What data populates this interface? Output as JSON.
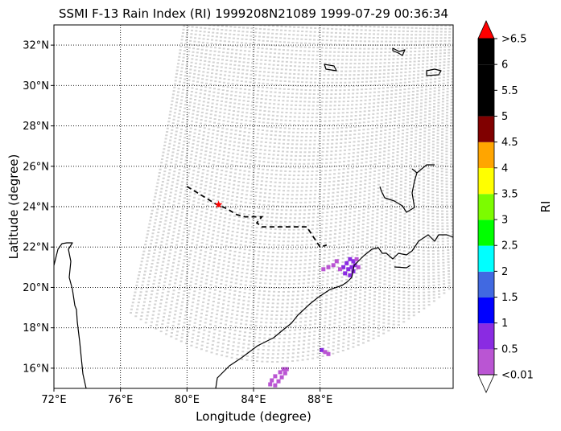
{
  "title": "SSMI F-13 Rain Index (RI) 1999208N21089 1999-07-29 00:36:34",
  "chart_data": {
    "type": "map",
    "title": "SSMI F-13 Rain Index (RI) 1999208N21089 1999-07-29 00:36:34",
    "xlabel": "Longitude (degree)",
    "ylabel": "Latitude (degree)",
    "xlim": [
      72,
      96
    ],
    "ylim": [
      15,
      33
    ],
    "x_ticks": [
      72,
      76,
      80,
      84,
      88
    ],
    "x_tick_labels": [
      "72°E",
      "76°E",
      "80°E",
      "84°E",
      "88°E"
    ],
    "y_ticks": [
      16,
      18,
      20,
      22,
      24,
      26,
      28,
      30,
      32
    ],
    "y_tick_labels": [
      "16°N",
      "18°N",
      "20°N",
      "22°N",
      "24°N",
      "26°N",
      "28°N",
      "30°N",
      "32°N"
    ],
    "grid": "dotted",
    "swath_color": "#d3d3d3",
    "no_rain_label": "<0.01",
    "track": {
      "style": "dashed",
      "color": "#000000",
      "points": [
        [
          80.0,
          25.0
        ],
        [
          80.6,
          24.7
        ],
        [
          81.2,
          24.4
        ],
        [
          81.8,
          24.1
        ],
        [
          82.4,
          23.9
        ],
        [
          83.0,
          23.6
        ],
        [
          83.5,
          23.5
        ],
        [
          84.5,
          23.5
        ],
        [
          84.2,
          23.2
        ],
        [
          84.5,
          23.0
        ],
        [
          85.5,
          23.0
        ],
        [
          86.5,
          23.0
        ],
        [
          87.2,
          23.0
        ],
        [
          87.6,
          22.5
        ],
        [
          88.0,
          22.0
        ],
        [
          88.4,
          22.1
        ]
      ]
    },
    "current_position": {
      "lon": 81.9,
      "lat": 24.1,
      "marker": "star",
      "color": "#ff0000"
    },
    "colorbar": {
      "label": "RI",
      "position": "right",
      "extend": "both",
      "tick_labels": [
        "<0.01",
        "0.5",
        "1",
        "1.5",
        "2",
        "2.5",
        "3",
        "3.5",
        "4",
        "4.5",
        "5",
        "5.5",
        "6",
        ">6.5"
      ],
      "bins": [
        {
          "from": 0.01,
          "to": 0.5,
          "color": "#ba55d3"
        },
        {
          "from": 0.5,
          "to": 1.0,
          "color": "#8a2be2"
        },
        {
          "from": 1.0,
          "to": 1.5,
          "color": "#0000ff"
        },
        {
          "from": 1.5,
          "to": 2.0,
          "color": "#4169e1"
        },
        {
          "from": 2.0,
          "to": 2.5,
          "color": "#00ffff"
        },
        {
          "from": 2.5,
          "to": 3.0,
          "color": "#00ff00"
        },
        {
          "from": 3.0,
          "to": 3.5,
          "color": "#7cfc00"
        },
        {
          "from": 3.5,
          "to": 4.0,
          "color": "#ffff00"
        },
        {
          "from": 4.0,
          "to": 4.5,
          "color": "#ffa500"
        },
        {
          "from": 4.5,
          "to": 5.0,
          "color": "#800000"
        },
        {
          "from": 5.0,
          "to": 6.0,
          "color": "#000000"
        },
        {
          "from": 6.0,
          "to": 6.5,
          "color": "#000000"
        }
      ],
      "under_color": "#ffffff",
      "over_color": "#ff0000"
    },
    "rain_cells": [
      {
        "lon": 89.8,
        "lat": 21.4,
        "ri": 0.7
      },
      {
        "lon": 90.0,
        "lat": 21.3,
        "ri": 0.8
      },
      {
        "lon": 90.1,
        "lat": 21.1,
        "ri": 0.7
      },
      {
        "lon": 89.6,
        "lat": 21.2,
        "ri": 0.8
      },
      {
        "lon": 89.9,
        "lat": 21.0,
        "ri": 0.9
      },
      {
        "lon": 90.2,
        "lat": 21.4,
        "ri": 0.4
      },
      {
        "lon": 89.4,
        "lat": 21.0,
        "ri": 0.6
      },
      {
        "lon": 89.7,
        "lat": 20.9,
        "ri": 0.7
      },
      {
        "lon": 90.0,
        "lat": 20.8,
        "ri": 0.6
      },
      {
        "lon": 89.5,
        "lat": 20.7,
        "ri": 0.7
      },
      {
        "lon": 89.8,
        "lat": 20.6,
        "ri": 0.8
      },
      {
        "lon": 89.2,
        "lat": 20.9,
        "ri": 0.3
      },
      {
        "lon": 88.8,
        "lat": 21.1,
        "ri": 0.3
      },
      {
        "lon": 88.5,
        "lat": 21.0,
        "ri": 0.3
      },
      {
        "lon": 88.2,
        "lat": 20.9,
        "ri": 0.4
      },
      {
        "lon": 89.0,
        "lat": 21.3,
        "ri": 0.4
      },
      {
        "lon": 90.3,
        "lat": 21.0,
        "ri": 0.3
      },
      {
        "lon": 88.1,
        "lat": 16.9,
        "ri": 0.6
      },
      {
        "lon": 88.3,
        "lat": 16.8,
        "ri": 0.4
      },
      {
        "lon": 88.5,
        "lat": 16.7,
        "ri": 0.4
      },
      {
        "lon": 85.8,
        "lat": 15.95,
        "ri": 0.3
      },
      {
        "lon": 86.0,
        "lat": 15.95,
        "ri": 0.3
      },
      {
        "lon": 85.6,
        "lat": 15.8,
        "ri": 0.4
      },
      {
        "lon": 85.9,
        "lat": 15.75,
        "ri": 0.3
      },
      {
        "lon": 85.3,
        "lat": 15.6,
        "ri": 0.3
      },
      {
        "lon": 85.7,
        "lat": 15.55,
        "ri": 0.4
      },
      {
        "lon": 85.1,
        "lat": 15.4,
        "ri": 0.3
      },
      {
        "lon": 85.5,
        "lat": 15.35,
        "ri": 0.3
      },
      {
        "lon": 85.0,
        "lat": 15.2,
        "ri": 0.4
      },
      {
        "lon": 85.3,
        "lat": 15.15,
        "ri": 0.3
      }
    ]
  }
}
